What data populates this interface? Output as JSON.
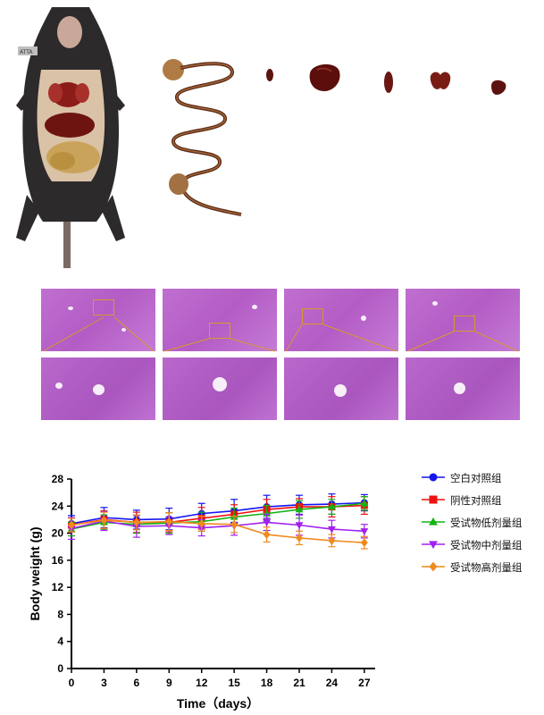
{
  "photos": {
    "mouse_tag": "ATTA"
  },
  "colors": {
    "series": [
      "#1515f0",
      "#ee1111",
      "#14b414",
      "#a020f0",
      "#f08a1c"
    ],
    "histo_box": "#d79a2b"
  },
  "chart_data": {
    "type": "line",
    "title": "",
    "xlabel": "Time（days）",
    "ylabel": "Body weight (g)",
    "xlim": [
      0,
      28
    ],
    "ylim": [
      0,
      28
    ],
    "xticks": [
      0,
      3,
      6,
      9,
      12,
      15,
      18,
      21,
      24,
      27
    ],
    "yticks": [
      0,
      4,
      8,
      12,
      16,
      20,
      24,
      28
    ],
    "grid": false,
    "legend": "right",
    "x": [
      0,
      3,
      6,
      9,
      12,
      15,
      18,
      21,
      24,
      27
    ],
    "series": [
      {
        "name": "空白对照组",
        "color": "#1515f0",
        "marker": "circle",
        "values": [
          21.4,
          22.3,
          22.0,
          22.1,
          22.9,
          23.3,
          23.9,
          24.2,
          24.3,
          24.5
        ],
        "errors": [
          1.2,
          1.5,
          1.4,
          1.6,
          1.5,
          1.7,
          1.7,
          1.4,
          1.5,
          1.2
        ]
      },
      {
        "name": "阴性对照组",
        "color": "#ee1111",
        "marker": "square",
        "values": [
          21.2,
          22.0,
          21.6,
          21.6,
          22.2,
          22.8,
          23.5,
          23.9,
          23.9,
          24.1
        ],
        "errors": [
          1.0,
          1.3,
          1.5,
          1.4,
          1.6,
          1.4,
          1.5,
          1.2,
          1.5,
          1.3
        ]
      },
      {
        "name": "受试物低剂量组",
        "color": "#14b414",
        "marker": "triangle-up",
        "values": [
          20.6,
          21.6,
          21.3,
          21.5,
          21.7,
          22.4,
          22.9,
          23.5,
          23.9,
          24.4
        ],
        "errors": [
          1.0,
          1.1,
          1.3,
          1.5,
          1.4,
          1.3,
          1.2,
          1.3,
          1.1,
          1.0
        ]
      },
      {
        "name": "受试物中剂量组",
        "color": "#a020f0",
        "marker": "triangle-down",
        "values": [
          20.7,
          21.8,
          21.0,
          21.1,
          20.8,
          21.1,
          21.6,
          21.2,
          20.6,
          20.3
        ],
        "errors": [
          1.6,
          1.4,
          1.6,
          1.3,
          1.2,
          1.4,
          1.2,
          1.5,
          1.3,
          1.0
        ]
      },
      {
        "name": "受试物高剂量组",
        "color": "#f08a1c",
        "marker": "diamond",
        "values": [
          21.2,
          21.9,
          21.6,
          21.7,
          21.4,
          21.3,
          19.8,
          19.3,
          18.9,
          18.6
        ],
        "errors": [
          1.0,
          1.2,
          1.1,
          1.3,
          1.1,
          1.2,
          1.1,
          1.0,
          0.9,
          0.9
        ]
      }
    ]
  }
}
